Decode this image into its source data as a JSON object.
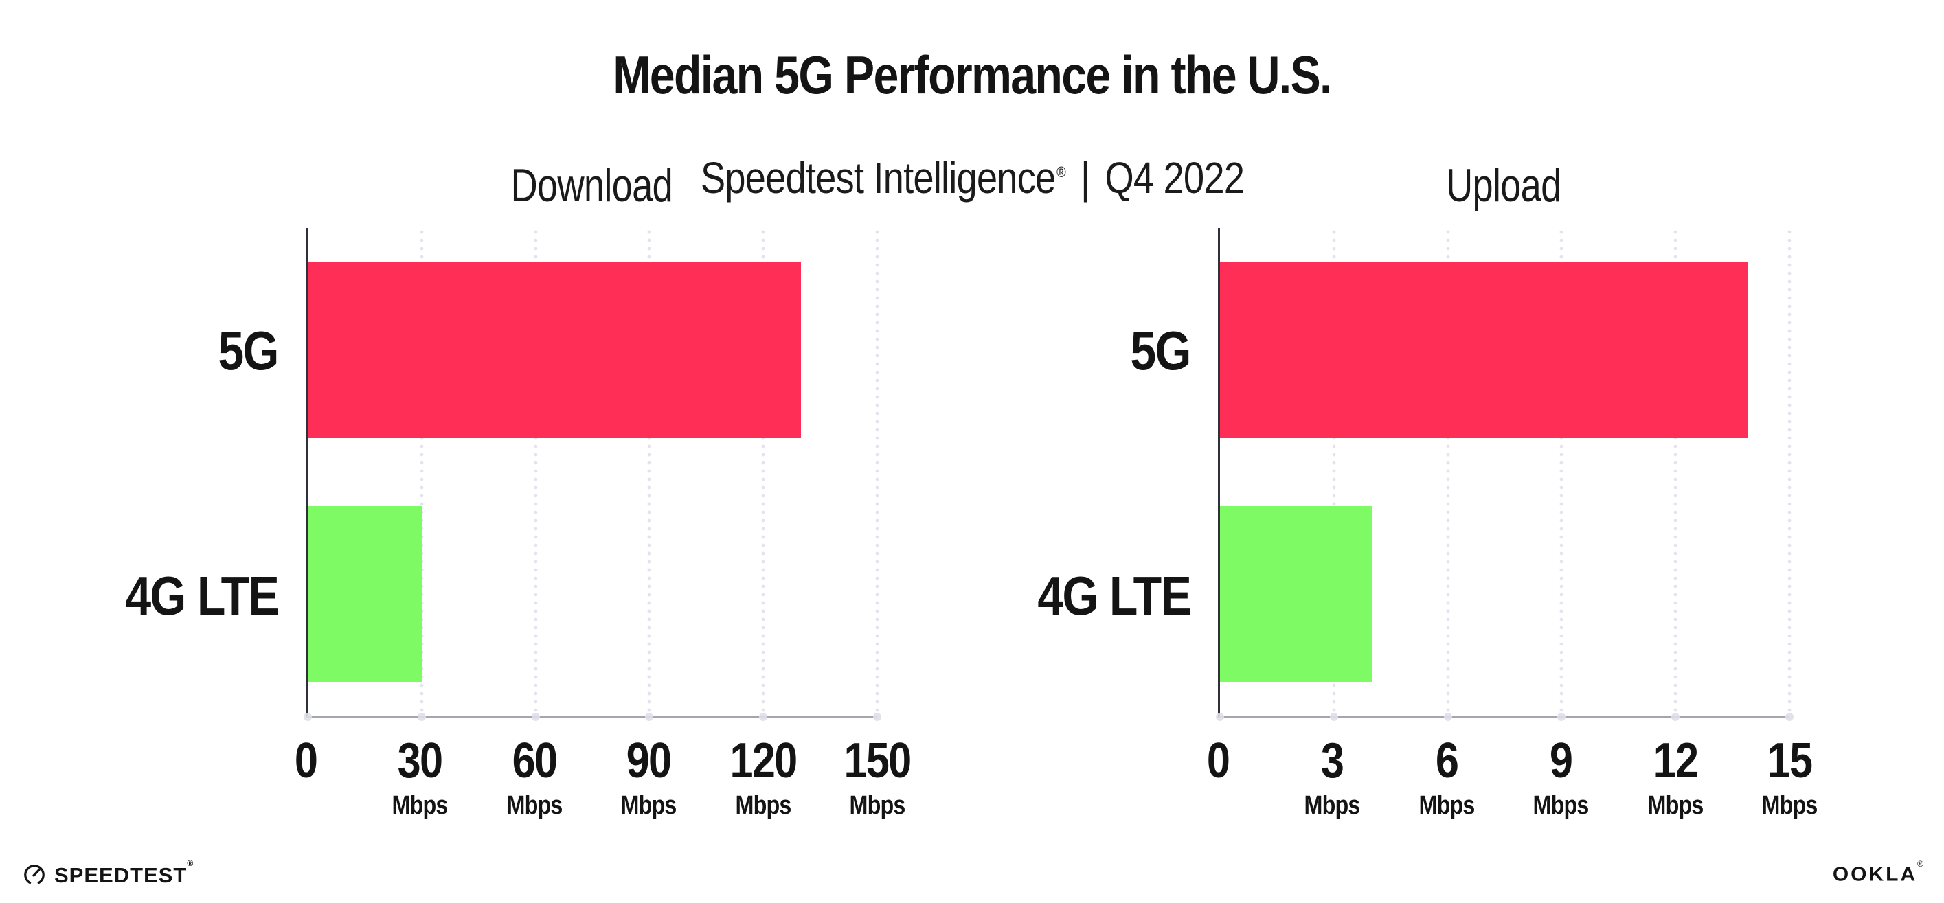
{
  "header": {
    "title": "Median 5G Performance in the U.S.",
    "subtitle": {
      "brand": "Speedtest Intelligence",
      "registered_mark": "®",
      "divider": "|",
      "period": "Q4 2022"
    }
  },
  "chart_data": [
    {
      "type": "bar",
      "orientation": "horizontal",
      "title": "Download",
      "categories": [
        "5G",
        "4G LTE"
      ],
      "values": [
        130,
        30
      ],
      "unit": "Mbps",
      "xlim": [
        0,
        150
      ],
      "xticks": [
        0,
        30,
        60,
        90,
        120,
        150
      ],
      "bar_colors": [
        "#FF2E56",
        "#7DFA64"
      ],
      "grid": "dotted-vertical-gridlines",
      "legend": "none"
    },
    {
      "type": "bar",
      "orientation": "horizontal",
      "title": "Upload",
      "categories": [
        "5G",
        "4G LTE"
      ],
      "values": [
        13.9,
        4
      ],
      "unit": "Mbps",
      "xlim": [
        0,
        15
      ],
      "xticks": [
        0,
        3,
        6,
        9,
        12,
        15
      ],
      "bar_colors": [
        "#FF2E56",
        "#7DFA64"
      ],
      "grid": "dotted-vertical-gridlines",
      "legend": "none"
    }
  ],
  "colors": {
    "bar_5g": "#FF2E56",
    "bar_4g_lte": "#7DFA64",
    "gridline": "#E3E3EF",
    "x_axis_line": "#A5A5AD",
    "y_axis_line": "#30303A",
    "text": "#141414"
  },
  "footer": {
    "speedtest_logo_text": "SPEEDTEST",
    "speedtest_mark": "®",
    "ookla_logo_text": "OOKLA",
    "ookla_mark": "®"
  }
}
